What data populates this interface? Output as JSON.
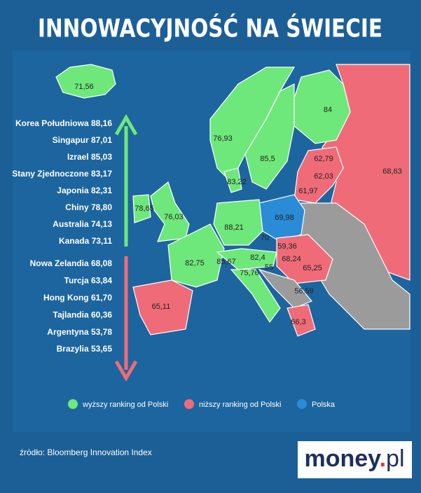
{
  "header": {
    "title": "INNOWACYJNOŚĆ NA ŚWIECIE"
  },
  "higher": [
    "Korea Południowa 88,16",
    "Singapur 87,01",
    "Izrael 85,03",
    "Stany Zjednoczone 83,17",
    "Japonia 82,31",
    "Chiny 78,80",
    "Australia 74,13",
    "Kanada 73,11"
  ],
  "lower": [
    "Nowa Zelandia 68,08",
    "Turcja 63,84",
    "Hong Kong 61,70",
    "Tajlandia 60,36",
    "Argentyna 53,78",
    "Brazylia 53,65"
  ],
  "map_labels": [
    "71,56",
    "84",
    "76,93",
    "85,5",
    "62,79",
    "68,63",
    "62,03",
    "83,22",
    "61,97",
    "78,65",
    "76,03",
    "69,98",
    "88,21",
    "70",
    "59,36",
    "68,24",
    "82,75",
    "85,67",
    "82,4",
    "65,25",
    "55",
    "75,76",
    "56,59",
    "65,11",
    "66,3"
  ],
  "legend": [
    "wyższy ranking od Polski",
    "niższy ranking od Polski",
    "Polska"
  ],
  "source": "źródło: Bloomberg Innovation Index",
  "logo": {
    "main": "money",
    "dot": ".",
    "suffix": "pl"
  }
}
